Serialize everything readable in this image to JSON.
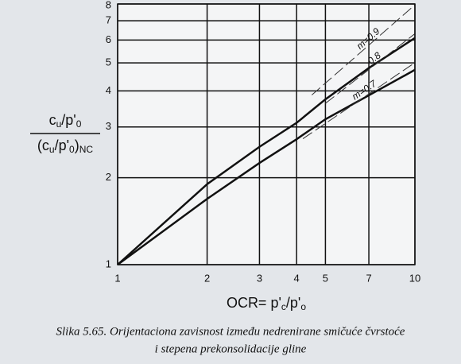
{
  "chart_data": {
    "type": "line",
    "log_x": true,
    "log_y": true,
    "grid": true,
    "xlim": [
      1,
      10
    ],
    "ylim": [
      1,
      8
    ],
    "xticks": [
      1,
      2,
      3,
      4,
      5,
      7,
      10
    ],
    "yticks": [
      1,
      2,
      3,
      4,
      5,
      6,
      7,
      8
    ],
    "ylabel_numerator": [
      "c",
      "u",
      "/p'",
      "0"
    ],
    "ylabel_denominator": [
      "(c",
      "u",
      "/p'",
      "0",
      ")",
      "NC"
    ],
    "xlabel": [
      "OCR= p'",
      "c",
      "/p'",
      "o"
    ],
    "caption": [
      "Slika 5.65. Orijentaciona zavisnost između nedrenirane smičuće čvrstoće",
      "i stepena prekonsolidacije gline"
    ],
    "series": [
      {
        "color": "#111111",
        "style": "solid",
        "x": [
          1,
          2,
          3,
          4,
          5,
          7,
          10
        ],
        "values": [
          1,
          1.9,
          2.56,
          3.1,
          3.74,
          4.8,
          6.1
        ]
      },
      {
        "color": "#111111",
        "style": "solid",
        "x": [
          1,
          2,
          3,
          4,
          5,
          7,
          10
        ],
        "values": [
          1,
          1.69,
          2.25,
          2.72,
          3.19,
          3.86,
          4.73
        ]
      },
      {
        "name": "m=0.9",
        "color": "#333333",
        "style": "dashed",
        "x": [
          4.5,
          10
        ],
        "values": [
          3.87,
          7.94
        ]
      },
      {
        "name": "0.8",
        "color": "#333333",
        "style": "dashed",
        "x": [
          5,
          10
        ],
        "values": [
          3.62,
          6.31
        ]
      },
      {
        "name": "m=0.7",
        "color": "#333333",
        "style": "dashed",
        "x": [
          4.2,
          10
        ],
        "values": [
          2.73,
          5.01
        ]
      }
    ]
  }
}
